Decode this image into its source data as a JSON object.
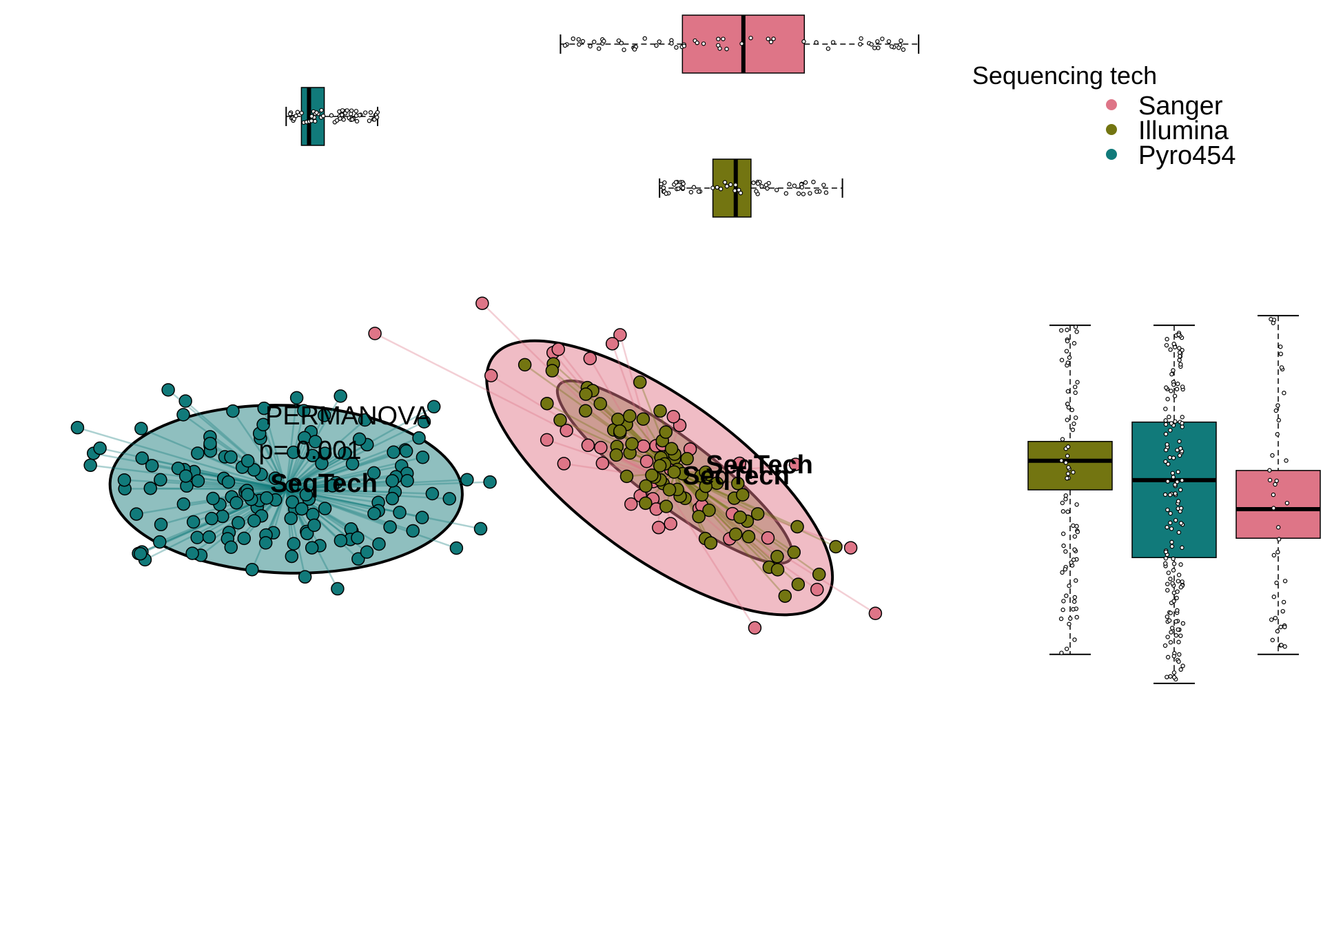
{
  "chart_data": {
    "type": "scatter",
    "legend": {
      "title": "Sequencing tech",
      "placement": "top-right",
      "entries": [
        {
          "name": "Sanger",
          "color": "#DE7587"
        },
        {
          "name": "Illumina",
          "color": "#737511"
        },
        {
          "name": "Pyro454",
          "color": "#117A7A"
        }
      ]
    },
    "annotation": {
      "lines": [
        "PERMANOVA",
        "p= 0.001"
      ]
    },
    "group_labels": [
      "SeqTech",
      "SeqTech",
      "SeqTech"
    ],
    "groups": [
      {
        "name": "Pyro454",
        "color": "#117A7A",
        "fill": "#8FBFBF",
        "center": [
          -0.35,
          0.0
        ],
        "ellipse": {
          "sx": 0.11,
          "sy": 0.31,
          "angle": 92
        },
        "count": 150
      },
      {
        "name": "Sanger",
        "color": "#DE7587",
        "fill": "#F0BCC5",
        "center": [
          0.14,
          0.02
        ],
        "ellipse": {
          "sx": 0.27,
          "sy": 0.14,
          "angle": 36
        },
        "count": 40
      },
      {
        "name": "Illumina",
        "color": "#737511",
        "fill": "#C7968A",
        "center": [
          0.16,
          0.03
        ],
        "ellipse": {
          "sx": 0.19,
          "sy": 0.06,
          "angle": 37
        },
        "count": 75
      }
    ],
    "top_boxplots": [
      {
        "name": "Sanger",
        "color": "#DE7587",
        "min": 0.01,
        "q1": 0.17,
        "median": 0.25,
        "q3": 0.33,
        "max": 0.48
      },
      {
        "name": "Illumina",
        "color": "#737511",
        "min": 0.14,
        "q1": 0.21,
        "median": 0.24,
        "q3": 0.26,
        "max": 0.38
      },
      {
        "name": "Pyro454",
        "color": "#117A7A",
        "min": -0.35,
        "q1": -0.33,
        "median": -0.32,
        "q3": -0.3,
        "max": -0.23
      }
    ],
    "right_boxplots": [
      {
        "name": "Illumina",
        "color": "#737511",
        "min": -0.21,
        "q1": -0.04,
        "median": -0.01,
        "q3": 0.01,
        "max": 0.13
      },
      {
        "name": "Pyro454",
        "color": "#117A7A",
        "min": -0.24,
        "q1": -0.11,
        "median": -0.03,
        "q3": 0.03,
        "max": 0.13
      },
      {
        "name": "Sanger",
        "color": "#DE7587",
        "min": -0.21,
        "q1": -0.09,
        "median": -0.06,
        "q3": -0.02,
        "max": 0.14
      }
    ]
  }
}
